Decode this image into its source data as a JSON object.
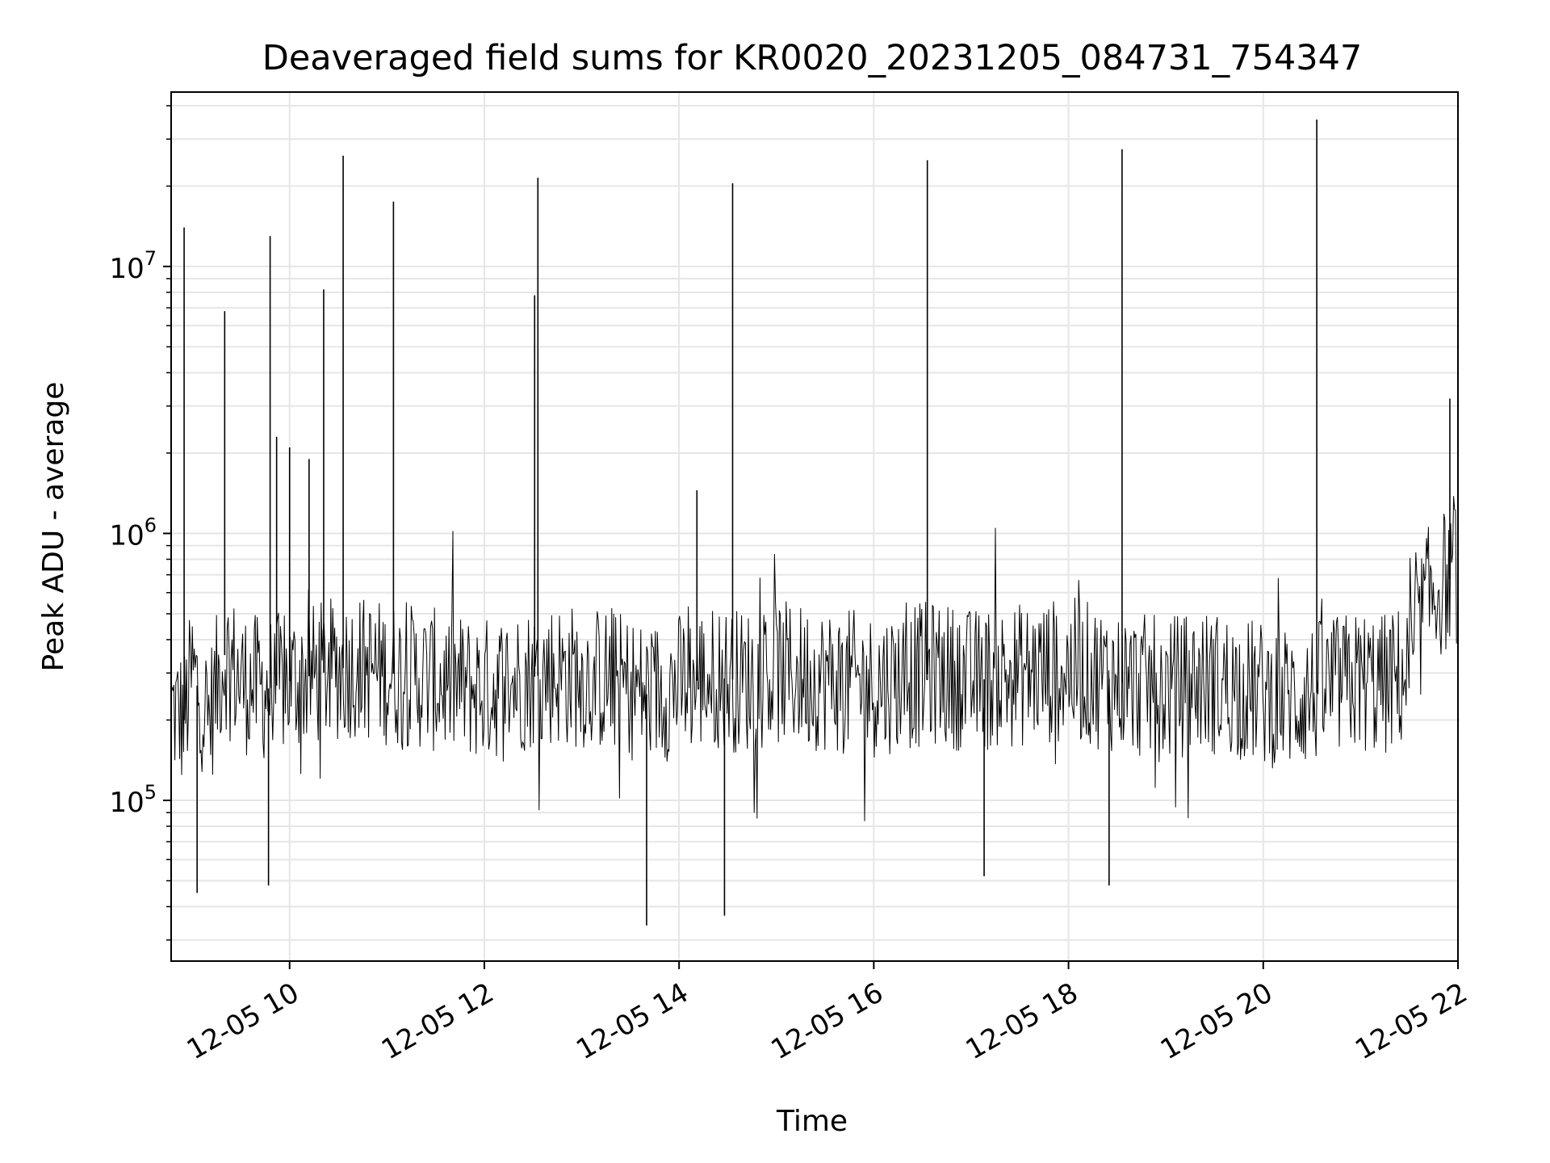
{
  "chart_data": {
    "type": "line",
    "title": "Deaveraged field sums for KR0020_20231205_084731_754347",
    "xlabel": "Time",
    "ylabel": "Peak ADU - average",
    "y_scale": "log",
    "ylim": [
      25000,
      45000000
    ],
    "xlim": [
      "2023-12-05 08:47",
      "2023-12-05 22:00"
    ],
    "grid": true,
    "line_color": "#000000",
    "grid_color": "#e6e6e6",
    "x_ticks": [
      {
        "value": "2023-12-05 10:00",
        "label": "12-05 10"
      },
      {
        "value": "2023-12-05 12:00",
        "label": "12-05 12"
      },
      {
        "value": "2023-12-05 14:00",
        "label": "12-05 14"
      },
      {
        "value": "2023-12-05 16:00",
        "label": "12-05 16"
      },
      {
        "value": "2023-12-05 18:00",
        "label": "12-05 18"
      },
      {
        "value": "2023-12-05 20:00",
        "label": "12-05 20"
      },
      {
        "value": "2023-12-05 22:00",
        "label": "12-05 22"
      }
    ],
    "y_ticks": [
      {
        "value": 100000,
        "base": "10",
        "exp": "5"
      },
      {
        "value": 1000000,
        "base": "10",
        "exp": "6"
      },
      {
        "value": 10000000,
        "base": "10",
        "exp": "7"
      }
    ],
    "series": [
      {
        "x": [
          "2023-12-05 08:47",
          "2023-12-05 08:55",
          "2023-12-05 09:00",
          "2023-12-05 09:05",
          "2023-12-05 09:10",
          "2023-12-05 09:20",
          "2023-12-05 09:30",
          "2023-12-05 09:45",
          "2023-12-05 10:00",
          "2023-12-05 10:20",
          "2023-12-05 10:40",
          "2023-12-05 11:00",
          "2023-12-05 11:20",
          "2023-12-05 11:40",
          "2023-12-05 12:00",
          "2023-12-05 12:20",
          "2023-12-05 12:40",
          "2023-12-05 13:00",
          "2023-12-05 13:20",
          "2023-12-05 13:40",
          "2023-12-05 14:00",
          "2023-12-05 14:20",
          "2023-12-05 14:40",
          "2023-12-05 15:00",
          "2023-12-05 15:20",
          "2023-12-05 15:40",
          "2023-12-05 16:00",
          "2023-12-05 16:20",
          "2023-12-05 16:40",
          "2023-12-05 17:00",
          "2023-12-05 17:20",
          "2023-12-05 17:40",
          "2023-12-05 18:00",
          "2023-12-05 18:20",
          "2023-12-05 18:40",
          "2023-12-05 19:00",
          "2023-12-05 19:20",
          "2023-12-05 19:40",
          "2023-12-05 20:00",
          "2023-12-05 20:20",
          "2023-12-05 20:40",
          "2023-12-05 21:00",
          "2023-12-05 21:15",
          "2023-12-05 21:30",
          "2023-12-05 21:40",
          "2023-12-05 21:50",
          "2023-12-05 22:00"
        ],
        "y": [
          220000,
          200000,
          300000,
          250000,
          200000,
          350000,
          280000,
          260000,
          280000,
          300000,
          320000,
          300000,
          290000,
          270000,
          260000,
          280000,
          300000,
          290000,
          280000,
          250000,
          270000,
          290000,
          280000,
          300000,
          290000,
          280000,
          270000,
          290000,
          300000,
          280000,
          290000,
          300000,
          310000,
          290000,
          270000,
          260000,
          280000,
          270000,
          250000,
          240000,
          260000,
          280000,
          270000,
          300000,
          550000,
          650000,
          700000
        ]
      }
    ],
    "spikes": [
      {
        "x": "2023-12-05 08:55",
        "y": 14000000
      },
      {
        "x": "2023-12-05 09:20",
        "y": 6800000
      },
      {
        "x": "2023-12-05 09:48",
        "y": 13000000
      },
      {
        "x": "2023-12-05 09:52",
        "y": 2300000
      },
      {
        "x": "2023-12-05 10:00",
        "y": 2100000
      },
      {
        "x": "2023-12-05 10:12",
        "y": 1900000
      },
      {
        "x": "2023-12-05 10:21",
        "y": 8200000
      },
      {
        "x": "2023-12-05 10:33",
        "y": 26000000
      },
      {
        "x": "2023-12-05 11:04",
        "y": 17500000
      },
      {
        "x": "2023-12-05 12:31",
        "y": 7800000
      },
      {
        "x": "2023-12-05 12:33",
        "y": 21500000
      },
      {
        "x": "2023-12-05 14:11",
        "y": 1450000
      },
      {
        "x": "2023-12-05 14:33",
        "y": 20500000
      },
      {
        "x": "2023-12-05 16:33",
        "y": 25000000
      },
      {
        "x": "2023-12-05 18:33",
        "y": 27500000
      },
      {
        "x": "2023-12-05 20:33",
        "y": 35500000
      },
      {
        "x": "2023-12-05 21:55",
        "y": 3200000
      }
    ],
    "dips": [
      {
        "x": "2023-12-05 09:03",
        "y": 45000
      },
      {
        "x": "2023-12-05 09:47",
        "y": 48000
      },
      {
        "x": "2023-12-05 13:40",
        "y": 34000
      },
      {
        "x": "2023-12-05 14:28",
        "y": 37000
      },
      {
        "x": "2023-12-05 17:08",
        "y": 52000
      },
      {
        "x": "2023-12-05 18:25",
        "y": 48000
      }
    ]
  }
}
